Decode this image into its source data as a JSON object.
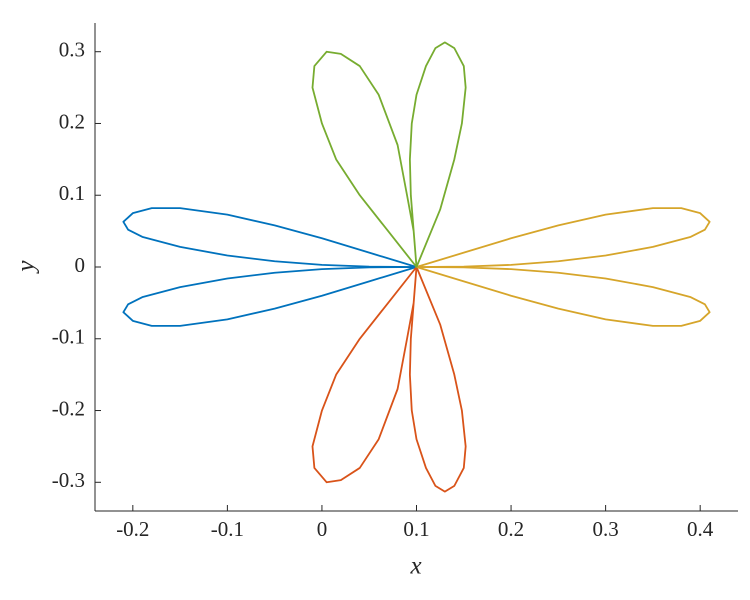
{
  "chart_data": {
    "type": "line",
    "xlabel": "x",
    "ylabel": "y",
    "xlim": [
      -0.24,
      0.44
    ],
    "ylim": [
      -0.34,
      0.34
    ],
    "xticks": [
      -0.2,
      -0.1,
      0,
      0.1,
      0.2,
      0.3,
      0.4
    ],
    "yticks": [
      -0.3,
      -0.2,
      -0.1,
      0,
      0.1,
      0.2,
      0.3
    ],
    "grid": false,
    "series": [
      {
        "color": "#0072bd",
        "x": [
          0.1,
          0.05,
          0,
          -0.05,
          -0.1,
          -0.15,
          -0.18,
          -0.2,
          -0.21,
          -0.205,
          -0.19,
          -0.15,
          -0.1,
          -0.05,
          0,
          0.05,
          0.1,
          0.05,
          0,
          -0.05,
          -0.1,
          -0.15,
          -0.19,
          -0.205,
          -0.21,
          -0.2,
          -0.18,
          -0.15,
          -0.1,
          -0.05,
          0,
          0.05,
          0.1
        ],
        "values": [
          0,
          0.02,
          0.04,
          0.058,
          0.073,
          0.082,
          0.082,
          0.075,
          0.063,
          0.052,
          0.042,
          0.028,
          0.016,
          0.008,
          0.003,
          0.0005,
          0,
          -0.0005,
          -0.003,
          -0.008,
          -0.016,
          -0.028,
          -0.042,
          -0.052,
          -0.063,
          -0.075,
          -0.082,
          -0.082,
          -0.073,
          -0.058,
          -0.04,
          -0.02,
          0
        ]
      },
      {
        "color": "#d95319",
        "x": [
          0.1,
          0.097,
          0.094,
          0.093,
          0.095,
          0.1,
          0.11,
          0.12,
          0.13,
          0.14,
          0.15,
          0.152,
          0.148,
          0.14,
          0.125,
          0.1,
          0.07,
          0.04,
          0.015,
          0,
          -0.01,
          -0.008,
          0.005,
          0.02,
          0.04,
          0.06,
          0.08,
          0.09,
          0.097,
          0.1
        ],
        "values": [
          0,
          -0.05,
          -0.1,
          -0.15,
          -0.2,
          -0.24,
          -0.28,
          -0.305,
          -0.313,
          -0.305,
          -0.28,
          -0.25,
          -0.2,
          -0.15,
          -0.08,
          0,
          -0.05,
          -0.1,
          -0.15,
          -0.2,
          -0.25,
          -0.28,
          -0.3,
          -0.297,
          -0.28,
          -0.24,
          -0.17,
          -0.1,
          -0.05,
          0
        ]
      },
      {
        "color": "#d6a52a",
        "x": [
          0.1,
          0.15,
          0.2,
          0.25,
          0.3,
          0.35,
          0.38,
          0.4,
          0.41,
          0.405,
          0.39,
          0.35,
          0.3,
          0.25,
          0.2,
          0.15,
          0.1,
          0.15,
          0.2,
          0.25,
          0.3,
          0.35,
          0.39,
          0.405,
          0.41,
          0.4,
          0.38,
          0.35,
          0.3,
          0.25,
          0.2,
          0.15,
          0.1
        ],
        "values": [
          0,
          0.02,
          0.04,
          0.058,
          0.073,
          0.082,
          0.082,
          0.075,
          0.063,
          0.052,
          0.042,
          0.028,
          0.016,
          0.008,
          0.003,
          0.0005,
          0,
          -0.0005,
          -0.003,
          -0.008,
          -0.016,
          -0.028,
          -0.042,
          -0.052,
          -0.063,
          -0.075,
          -0.082,
          -0.082,
          -0.073,
          -0.058,
          -0.04,
          -0.02,
          0
        ]
      },
      {
        "color": "#77ac30",
        "x": [
          0.1,
          0.097,
          0.094,
          0.093,
          0.095,
          0.1,
          0.11,
          0.12,
          0.13,
          0.14,
          0.15,
          0.152,
          0.148,
          0.14,
          0.125,
          0.1,
          0.07,
          0.04,
          0.015,
          0,
          -0.01,
          -0.008,
          0.005,
          0.02,
          0.04,
          0.06,
          0.08,
          0.09,
          0.097,
          0.1
        ],
        "values": [
          0,
          0.05,
          0.1,
          0.15,
          0.2,
          0.24,
          0.28,
          0.305,
          0.313,
          0.305,
          0.28,
          0.25,
          0.2,
          0.15,
          0.08,
          0,
          0.05,
          0.1,
          0.15,
          0.2,
          0.25,
          0.28,
          0.3,
          0.297,
          0.28,
          0.24,
          0.17,
          0.1,
          0.05,
          0
        ]
      }
    ]
  }
}
